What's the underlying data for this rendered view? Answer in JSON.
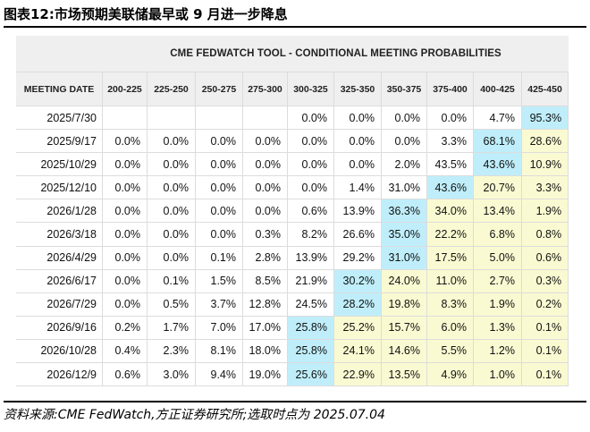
{
  "figure": {
    "title": "图表12:市场预期美联储最早或 9 月进一步降息",
    "source": "资料来源:CME FedWatch,方正证券研究所;选取时点为 2025.07.04"
  },
  "colors": {
    "highest_probability": "#bfeefa",
    "above_highest": "#fafad2"
  },
  "chart_data": {
    "type": "table",
    "title": "CME FEDWATCH TOOL - CONDITIONAL MEETING PROBABILITIES",
    "header_label": "MEETING DATE",
    "columns": [
      "200-225",
      "225-250",
      "250-275",
      "275-300",
      "300-325",
      "325-350",
      "350-375",
      "375-400",
      "400-425",
      "425-450"
    ],
    "rows": [
      {
        "date": "2025/7/30",
        "values": [
          "",
          "",
          "",
          "",
          "0.0%",
          "0.0%",
          "0.0%",
          "0.0%",
          "4.7%",
          "95.3%"
        ],
        "highlight": [
          null,
          null,
          null,
          null,
          null,
          null,
          null,
          null,
          null,
          "blue"
        ]
      },
      {
        "date": "2025/9/17",
        "values": [
          "0.0%",
          "0.0%",
          "0.0%",
          "0.0%",
          "0.0%",
          "0.0%",
          "0.0%",
          "3.3%",
          "68.1%",
          "28.6%"
        ],
        "highlight": [
          null,
          null,
          null,
          null,
          null,
          null,
          null,
          null,
          "blue",
          "yellow"
        ]
      },
      {
        "date": "2025/10/29",
        "values": [
          "0.0%",
          "0.0%",
          "0.0%",
          "0.0%",
          "0.0%",
          "0.0%",
          "2.0%",
          "43.5%",
          "43.6%",
          "10.9%"
        ],
        "highlight": [
          null,
          null,
          null,
          null,
          null,
          null,
          null,
          null,
          "blue",
          "yellow"
        ]
      },
      {
        "date": "2025/12/10",
        "values": [
          "0.0%",
          "0.0%",
          "0.0%",
          "0.0%",
          "0.0%",
          "1.4%",
          "31.0%",
          "43.6%",
          "20.7%",
          "3.3%"
        ],
        "highlight": [
          null,
          null,
          null,
          null,
          null,
          null,
          null,
          "blue",
          "yellow",
          "yellow"
        ]
      },
      {
        "date": "2026/1/28",
        "values": [
          "0.0%",
          "0.0%",
          "0.0%",
          "0.0%",
          "0.6%",
          "13.9%",
          "36.3%",
          "34.0%",
          "13.4%",
          "1.9%"
        ],
        "highlight": [
          null,
          null,
          null,
          null,
          null,
          null,
          "blue",
          "yellow",
          "yellow",
          "yellow"
        ]
      },
      {
        "date": "2026/3/18",
        "values": [
          "0.0%",
          "0.0%",
          "0.0%",
          "0.3%",
          "8.2%",
          "26.6%",
          "35.0%",
          "22.2%",
          "6.8%",
          "0.8%"
        ],
        "highlight": [
          null,
          null,
          null,
          null,
          null,
          null,
          "blue",
          "yellow",
          "yellow",
          "yellow"
        ]
      },
      {
        "date": "2026/4/29",
        "values": [
          "0.0%",
          "0.0%",
          "0.1%",
          "2.8%",
          "13.9%",
          "29.2%",
          "31.0%",
          "17.5%",
          "5.0%",
          "0.6%"
        ],
        "highlight": [
          null,
          null,
          null,
          null,
          null,
          null,
          "blue",
          "yellow",
          "yellow",
          "yellow"
        ]
      },
      {
        "date": "2026/6/17",
        "values": [
          "0.0%",
          "0.1%",
          "1.5%",
          "8.5%",
          "21.9%",
          "30.2%",
          "24.0%",
          "11.0%",
          "2.7%",
          "0.3%"
        ],
        "highlight": [
          null,
          null,
          null,
          null,
          null,
          "blue",
          "yellow",
          "yellow",
          "yellow",
          "yellow"
        ]
      },
      {
        "date": "2026/7/29",
        "values": [
          "0.0%",
          "0.5%",
          "3.7%",
          "12.8%",
          "24.5%",
          "28.2%",
          "19.8%",
          "8.3%",
          "1.9%",
          "0.2%"
        ],
        "highlight": [
          null,
          null,
          null,
          null,
          null,
          "blue",
          "yellow",
          "yellow",
          "yellow",
          "yellow"
        ]
      },
      {
        "date": "2026/9/16",
        "values": [
          "0.2%",
          "1.7%",
          "7.0%",
          "17.0%",
          "25.8%",
          "25.2%",
          "15.7%",
          "6.0%",
          "1.3%",
          "0.1%"
        ],
        "highlight": [
          null,
          null,
          null,
          null,
          "blue",
          "yellow",
          "yellow",
          "yellow",
          "yellow",
          "yellow"
        ]
      },
      {
        "date": "2026/10/28",
        "values": [
          "0.4%",
          "2.3%",
          "8.1%",
          "18.0%",
          "25.8%",
          "24.1%",
          "14.6%",
          "5.5%",
          "1.2%",
          "0.1%"
        ],
        "highlight": [
          null,
          null,
          null,
          null,
          "blue",
          "yellow",
          "yellow",
          "yellow",
          "yellow",
          "yellow"
        ]
      },
      {
        "date": "2026/12/9",
        "values": [
          "0.6%",
          "3.0%",
          "9.4%",
          "19.0%",
          "25.6%",
          "22.9%",
          "13.5%",
          "4.9%",
          "1.0%",
          "0.1%"
        ],
        "highlight": [
          null,
          null,
          null,
          null,
          "blue",
          "yellow",
          "yellow",
          "yellow",
          "yellow",
          "yellow"
        ]
      }
    ]
  }
}
